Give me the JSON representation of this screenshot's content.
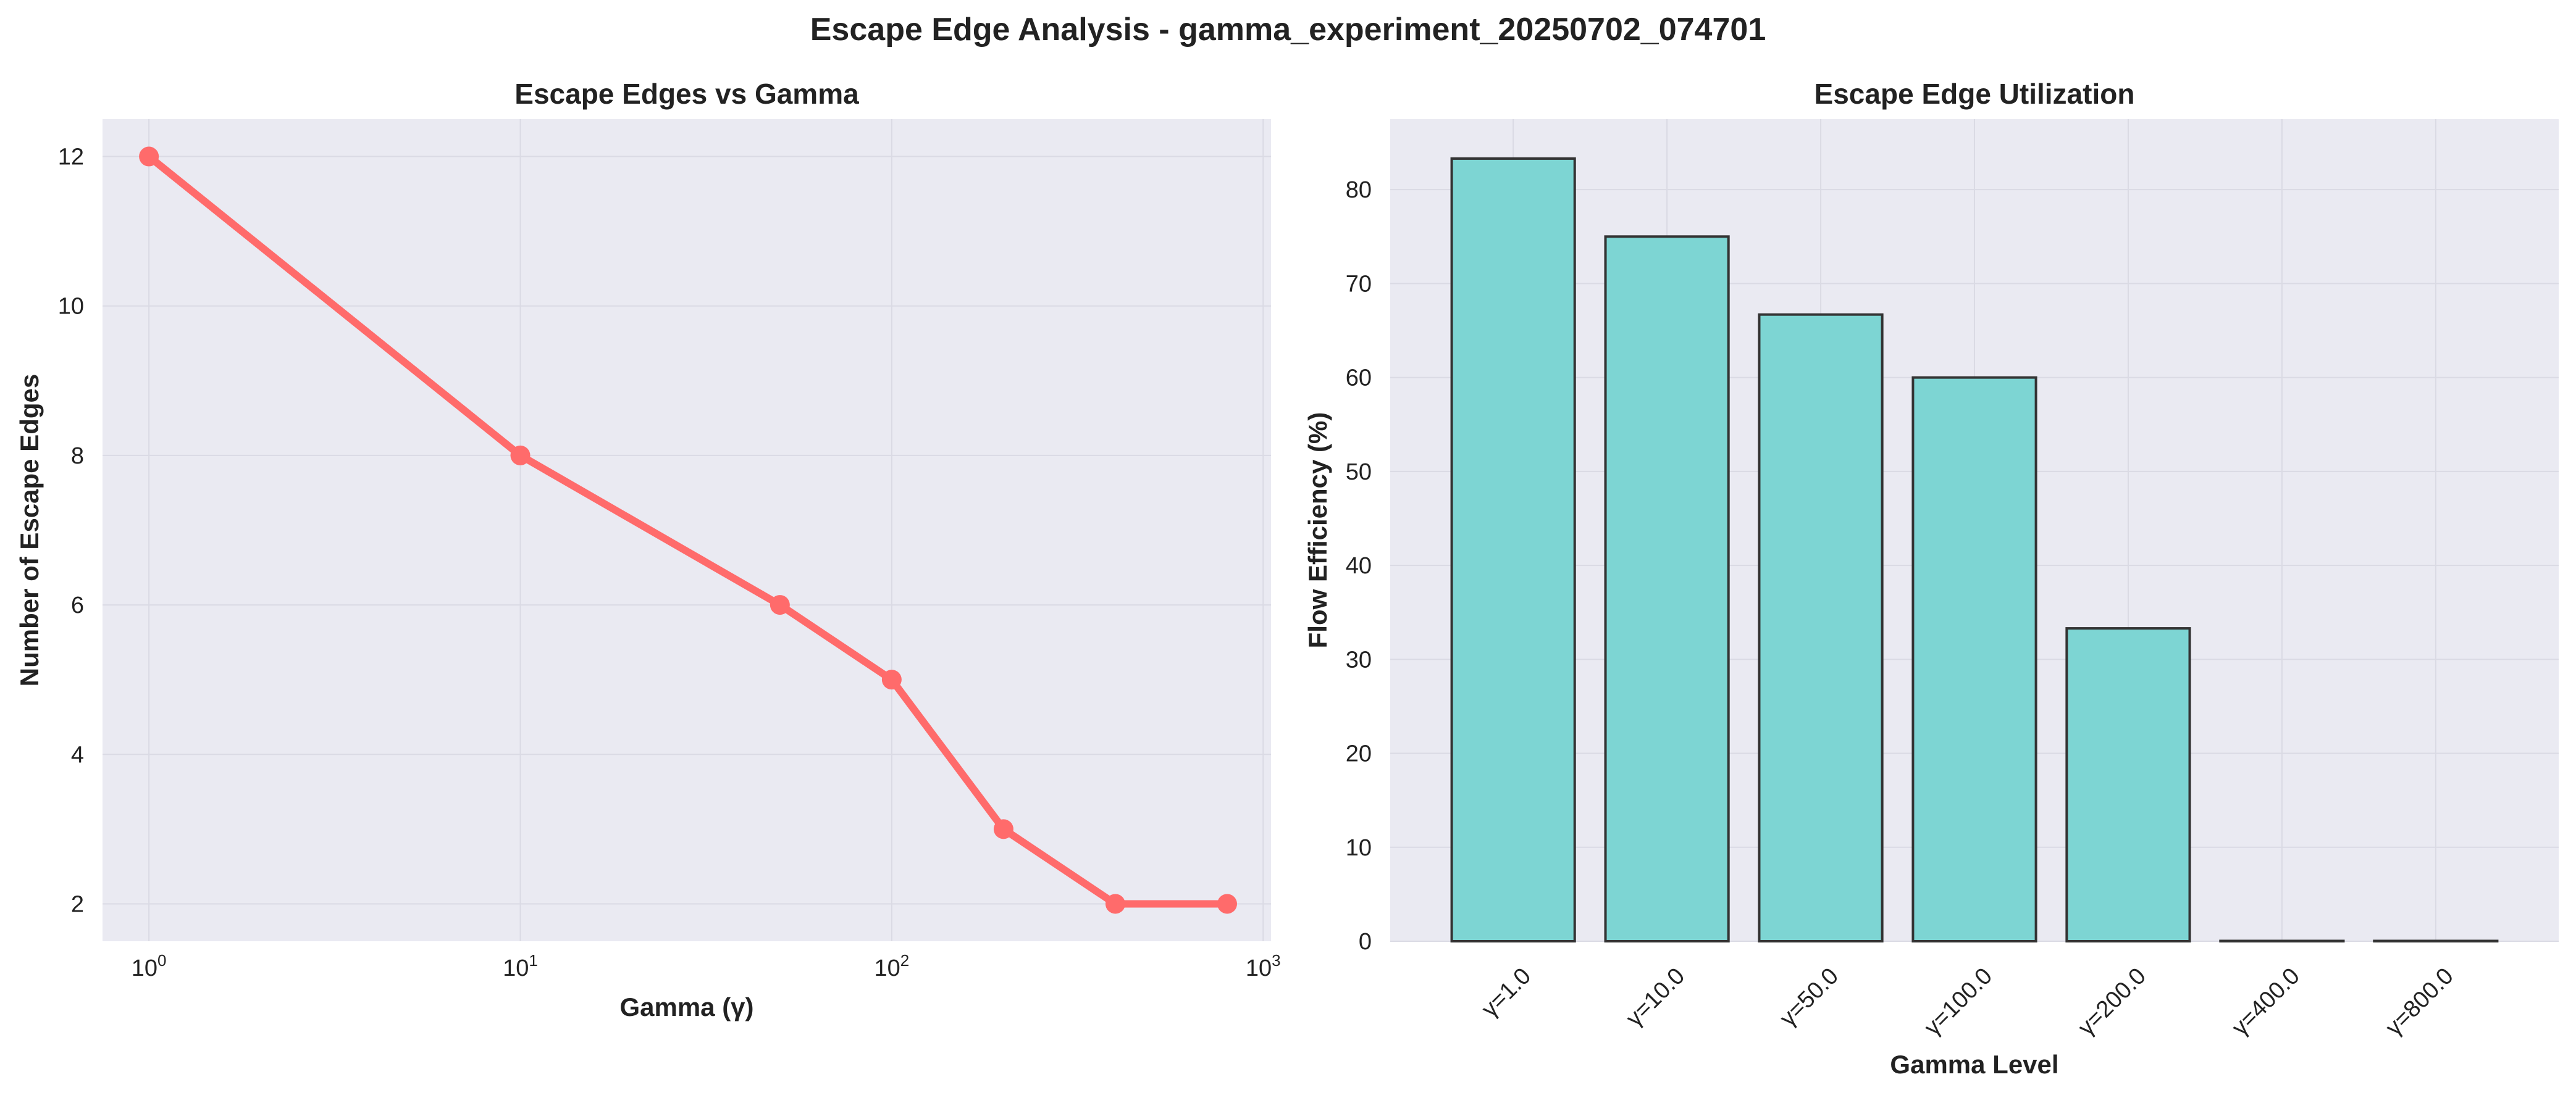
{
  "suptitle": "Escape Edge Analysis - gamma_experiment_20250702_074701",
  "colors": {
    "plot_bg": "#EAEAF2",
    "grid": "#DADAE4",
    "line": "#FF6B6B",
    "bar_fill": "#7DD5D3",
    "bar_edge": "#333333",
    "text": "#222222"
  },
  "chart_data": [
    {
      "type": "line",
      "title": "Escape Edges vs Gamma",
      "xlabel": "Gamma (γ)",
      "ylabel": "Number of Escape Edges",
      "xscale": "log",
      "xlim": [
        0.75,
        1050
      ],
      "ylim": [
        1.5,
        12.5
      ],
      "x_ticks": [
        1,
        10,
        100,
        1000
      ],
      "x_tick_labels": [
        {
          "base": "10",
          "exp": "0"
        },
        {
          "base": "10",
          "exp": "1"
        },
        {
          "base": "10",
          "exp": "2"
        },
        {
          "base": "10",
          "exp": "3"
        }
      ],
      "y_ticks": [
        2,
        4,
        6,
        8,
        10,
        12
      ],
      "grid": true,
      "series": [
        {
          "x": [
            1,
            10,
            50,
            100,
            200,
            400,
            800
          ],
          "y": [
            12,
            8,
            6,
            5,
            3,
            2,
            2
          ]
        }
      ]
    },
    {
      "type": "bar",
      "title": "Escape Edge Utilization",
      "xlabel": "Gamma Level",
      "ylabel": "Flow Efficiency (%)",
      "categories": [
        "γ=1.0",
        "γ=10.0",
        "γ=50.0",
        "γ=100.0",
        "γ=200.0",
        "γ=400.0",
        "γ=800.0"
      ],
      "values": [
        83.3,
        75.0,
        66.7,
        60.0,
        33.3,
        0,
        0
      ],
      "ylim": [
        0,
        87.5
      ],
      "y_ticks": [
        0,
        10,
        20,
        30,
        40,
        50,
        60,
        70,
        80
      ],
      "grid": true
    }
  ]
}
